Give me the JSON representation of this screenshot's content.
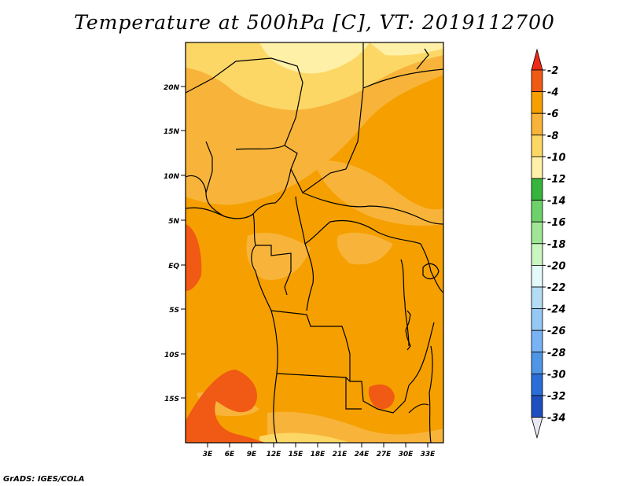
{
  "title": "Temperature at 500hPa [C], VT: 2019112700",
  "footer": "GrADS: IGES/COLA",
  "map": {
    "lat_labels": [
      "20N",
      "15N",
      "10N",
      "5N",
      "EQ",
      "5S",
      "10S",
      "15S"
    ],
    "lon_labels": [
      "3E",
      "6E",
      "9E",
      "12E",
      "15E",
      "18E",
      "21E",
      "24E",
      "27E",
      "30E",
      "33E"
    ],
    "shaded_levels_present": [
      "-2",
      "-4",
      "-6",
      "-8",
      "-10"
    ]
  },
  "colorbar": {
    "labels": [
      "-2",
      "-4",
      "-6",
      "-8",
      "-10",
      "-12",
      "-14",
      "-16",
      "-18",
      "-20",
      "-22",
      "-24",
      "-26",
      "-28",
      "-30",
      "-32",
      "-34"
    ],
    "colors": [
      "#f05a14",
      "#f5a000",
      "#f8b43a",
      "#fcd765",
      "#fff0a8",
      "#36b43c",
      "#6ed26a",
      "#a0e696",
      "#c8f5c0",
      "#e4fafa",
      "#b4dcf5",
      "#96c8f5",
      "#78b4f5",
      "#5096e6",
      "#2a6ed8",
      "#1e4fbe",
      "#0a1478"
    ],
    "top_arrow_color": "#ee2a14",
    "bottom_arrow_color": "#e8e8f4"
  }
}
